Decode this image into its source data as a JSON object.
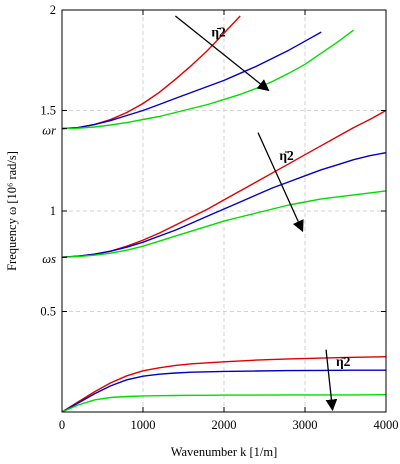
{
  "chart_data": {
    "type": "line",
    "xlabel": "Wavenumber k [1/m]",
    "ylabel": "Frequency ω [10⁶ rad/s]",
    "xlim": [
      0,
      4000
    ],
    "ylim": [
      0,
      2
    ],
    "x_ticks": [
      {
        "value": 0,
        "label": "0"
      },
      {
        "value": 1000,
        "label": "1000"
      },
      {
        "value": 2000,
        "label": "2000"
      },
      {
        "value": 3000,
        "label": "3000"
      },
      {
        "value": 4000,
        "label": "4000"
      }
    ],
    "y_ticks": [
      {
        "value": 0.5,
        "label": "0.5"
      },
      {
        "value": 1,
        "label": "1"
      },
      {
        "value": 1.5,
        "label": "1.5"
      },
      {
        "value": 2,
        "label": "2"
      }
    ],
    "y_special_ticks": [
      {
        "value": 1.41,
        "label": "ωr"
      },
      {
        "value": 0.77,
        "label": "ωs"
      }
    ],
    "grid": true,
    "grid_style": "dashed",
    "series": [
      {
        "group": "lower",
        "color": "#e00000",
        "x": [
          0,
          200,
          400,
          600,
          800,
          1000,
          1200,
          1400,
          1600,
          1800,
          2000,
          2400,
          2800,
          3200,
          3600,
          4000
        ],
        "y": [
          0,
          0.05,
          0.1,
          0.145,
          0.18,
          0.205,
          0.22,
          0.232,
          0.24,
          0.245,
          0.25,
          0.258,
          0.264,
          0.268,
          0.272,
          0.275
        ]
      },
      {
        "group": "lower",
        "color": "#0000cc",
        "x": [
          0,
          200,
          400,
          600,
          800,
          1000,
          1200,
          1400,
          1600,
          1800,
          2000,
          2400,
          2800,
          3200,
          3600,
          4000
        ],
        "y": [
          0,
          0.045,
          0.09,
          0.13,
          0.16,
          0.178,
          0.188,
          0.194,
          0.198,
          0.2,
          0.202,
          0.204,
          0.206,
          0.207,
          0.208,
          0.208
        ]
      },
      {
        "group": "lower",
        "color": "#00dd00",
        "x": [
          0,
          200,
          400,
          600,
          800,
          1000,
          1200,
          1400,
          1600,
          1800,
          2000,
          2400,
          2800,
          3200,
          3600,
          4000
        ],
        "y": [
          0,
          0.035,
          0.06,
          0.072,
          0.077,
          0.08,
          0.081,
          0.082,
          0.083,
          0.083,
          0.084,
          0.084,
          0.085,
          0.085,
          0.085,
          0.086
        ]
      },
      {
        "group": "middle",
        "color": "#e00000",
        "x": [
          0,
          200,
          400,
          600,
          800,
          1000,
          1200,
          1400,
          1600,
          1800,
          2000,
          2200,
          2400,
          2600,
          2800,
          3000,
          3200,
          3400,
          3600,
          3800,
          4000
        ],
        "y": [
          0.77,
          0.775,
          0.785,
          0.8,
          0.825,
          0.855,
          0.89,
          0.93,
          0.97,
          1.01,
          1.055,
          1.1,
          1.145,
          1.19,
          1.235,
          1.28,
          1.325,
          1.37,
          1.415,
          1.455,
          1.5
        ]
      },
      {
        "group": "middle",
        "color": "#0000cc",
        "x": [
          0,
          200,
          400,
          600,
          800,
          1000,
          1200,
          1400,
          1600,
          1800,
          2000,
          2200,
          2400,
          2600,
          2800,
          3000,
          3200,
          3400,
          3600,
          3800,
          4000
        ],
        "y": [
          0.77,
          0.775,
          0.785,
          0.8,
          0.82,
          0.845,
          0.875,
          0.905,
          0.94,
          0.975,
          1.01,
          1.045,
          1.08,
          1.115,
          1.145,
          1.175,
          1.205,
          1.23,
          1.255,
          1.275,
          1.29
        ]
      },
      {
        "group": "middle",
        "color": "#00dd00",
        "x": [
          0,
          200,
          400,
          600,
          800,
          1000,
          1200,
          1400,
          1600,
          1800,
          2000,
          2200,
          2400,
          2600,
          2800,
          3000,
          3200,
          3400,
          3600,
          3800,
          4000
        ],
        "y": [
          0.77,
          0.773,
          0.78,
          0.79,
          0.805,
          0.825,
          0.85,
          0.875,
          0.9,
          0.925,
          0.95,
          0.97,
          0.99,
          1.01,
          1.03,
          1.045,
          1.06,
          1.07,
          1.08,
          1.09,
          1.1
        ]
      },
      {
        "group": "upper",
        "color": "#e00000",
        "x": [
          0,
          200,
          400,
          600,
          800,
          1000,
          1200,
          1400,
          1600,
          1800,
          2000,
          2200
        ],
        "y": [
          1.41,
          1.415,
          1.43,
          1.455,
          1.49,
          1.535,
          1.59,
          1.655,
          1.725,
          1.8,
          1.885,
          1.97
        ]
      },
      {
        "group": "upper",
        "color": "#0000cc",
        "x": [
          0,
          200,
          400,
          600,
          800,
          1000,
          1200,
          1400,
          1600,
          1800,
          2000,
          2200,
          2400,
          2600,
          2800,
          3000,
          3200
        ],
        "y": [
          1.41,
          1.415,
          1.43,
          1.45,
          1.475,
          1.5,
          1.53,
          1.56,
          1.59,
          1.62,
          1.65,
          1.685,
          1.72,
          1.76,
          1.8,
          1.845,
          1.89
        ]
      },
      {
        "group": "upper",
        "color": "#00dd00",
        "x": [
          0,
          200,
          400,
          600,
          800,
          1000,
          1200,
          1400,
          1600,
          1800,
          2000,
          2200,
          2400,
          2600,
          2800,
          3000,
          3200,
          3400,
          3600
        ],
        "y": [
          1.41,
          1.412,
          1.418,
          1.428,
          1.44,
          1.455,
          1.47,
          1.49,
          1.51,
          1.53,
          1.555,
          1.58,
          1.61,
          1.645,
          1.685,
          1.73,
          1.785,
          1.84,
          1.9
        ]
      }
    ],
    "annotations": [
      {
        "text": "η̄2",
        "x_from": 1400,
        "y_from": 1.97,
        "x_to": 2550,
        "y_to": 1.6
      },
      {
        "text": "η̄2",
        "x_from": 2420,
        "y_from": 1.39,
        "x_to": 2970,
        "y_to": 0.9
      },
      {
        "text": "η̄2",
        "x_from": 3260,
        "y_from": 0.31,
        "x_to": 3340,
        "y_to": 0.01
      }
    ]
  }
}
